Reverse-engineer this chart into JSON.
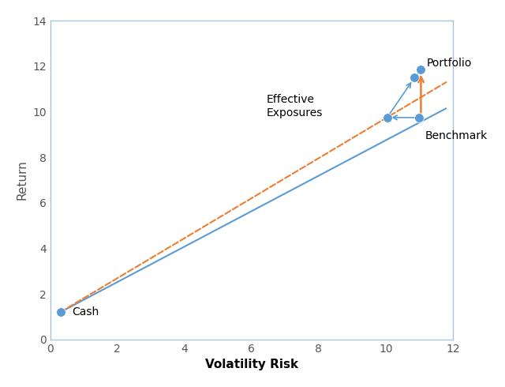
{
  "cash": [
    0.3,
    1.2
  ],
  "eff_exp": [
    10.05,
    9.75
  ],
  "benchmark": [
    11.0,
    9.75
  ],
  "portfolio_mid": [
    10.85,
    11.5
  ],
  "portfolio": [
    11.05,
    11.85
  ],
  "xlim": [
    0,
    12
  ],
  "ylim": [
    0,
    14
  ],
  "xticks": [
    0,
    2,
    4,
    6,
    8,
    10,
    12
  ],
  "yticks": [
    0,
    2,
    4,
    6,
    8,
    10,
    12,
    14
  ],
  "xlabel": "Volatility Risk",
  "ylabel": "Return",
  "blue_line_color": "#5B9BD5",
  "orange_line_color": "#ED7D31",
  "dot_color": "#5B9BD5",
  "dot_size": 70,
  "label_cash": "Cash",
  "label_eff": "Effective\nExposures",
  "label_bench": "Benchmark",
  "label_port": "Portfolio",
  "blue_line_end_x": 11.8,
  "blue_line_end_y": 10.15,
  "orange_line_end_x": 11.8,
  "orange_line_end_y": 11.3
}
